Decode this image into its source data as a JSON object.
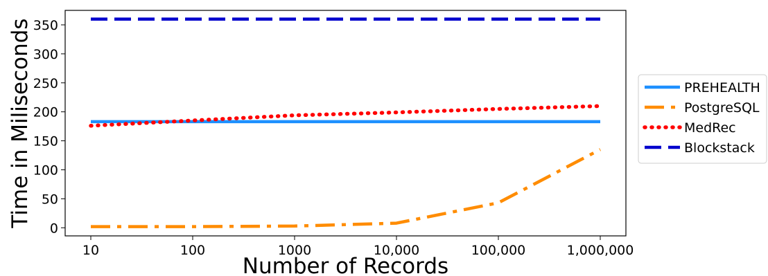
{
  "chart_data": {
    "type": "line",
    "title": "",
    "xlabel": "Number of Records",
    "ylabel": "Time in Miliseconds",
    "x_scale": "log",
    "categories": [
      "10",
      "100",
      "1000",
      "10,000",
      "100,000",
      "1,000,000"
    ],
    "x": [
      10,
      100,
      1000,
      10000,
      100000,
      1000000
    ],
    "ylim": [
      -14,
      375
    ],
    "yticks": [
      0,
      50,
      100,
      150,
      200,
      250,
      300,
      350
    ],
    "grid": false,
    "legend_position": "right",
    "series": [
      {
        "name": "PREHEALTH",
        "values": [
          183,
          183,
          183,
          183,
          183,
          183
        ],
        "color": "#1e90ff",
        "style": "solid"
      },
      {
        "name": "PostgreSQL",
        "values": [
          2,
          2,
          3,
          8,
          43,
          135
        ],
        "color": "#ff8c00",
        "style": "dashdot"
      },
      {
        "name": "MedRec",
        "values": [
          176,
          185,
          194,
          199,
          205,
          210
        ],
        "color": "#ff0000",
        "style": "dotted"
      },
      {
        "name": "Blockstack",
        "values": [
          360,
          360,
          360,
          360,
          360,
          360
        ],
        "color": "#0000cd",
        "style": "dashed"
      }
    ]
  }
}
